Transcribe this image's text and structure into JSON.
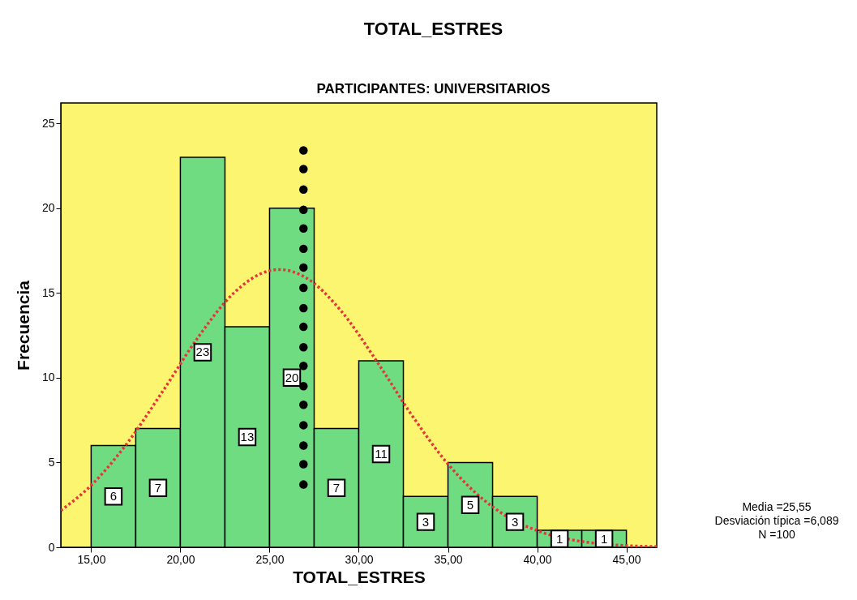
{
  "chart_data": {
    "type": "histogram",
    "title": "TOTAL_ESTRES",
    "subtitle": "PARTICIPANTES: UNIVERSITARIOS",
    "xlabel": "TOTAL_ESTRES",
    "ylabel": "Frecuencia",
    "bins": [
      15,
      17.5,
      20,
      22.5,
      25,
      27.5,
      30,
      32.5,
      35,
      37.5,
      40,
      42.5,
      45
    ],
    "values": [
      6,
      7,
      23,
      13,
      20,
      7,
      11,
      3,
      5,
      3,
      1,
      1
    ],
    "color": "#6fdc82",
    "value_labels": [
      "6",
      "7",
      "23",
      "13",
      "20",
      "7",
      "11",
      "3",
      "5",
      "3",
      "1",
      "1"
    ],
    "series": [
      {
        "type": "line",
        "color": "#e8323c",
        "line_style": "dotted",
        "x": [
          13.3,
          15,
          17,
          19,
          21,
          23,
          25,
          25.55,
          27,
          29,
          31,
          33,
          35,
          37,
          38,
          40.3,
          42,
          43,
          45,
          46.7
        ],
        "values": [
          2.17,
          3.65,
          6.11,
          9.18,
          12.39,
          15.0,
          16.31,
          16.38,
          15.92,
          13.95,
          10.98,
          7.75,
          4.91,
          2.8,
          2.02,
          0.87,
          0.43,
          0.27,
          0.1,
          0.04
        ]
      },
      {
        "type": "scatter",
        "color": "#000000",
        "marker": "circle",
        "x": [
          26.9,
          26.9,
          26.9,
          26.9,
          26.9,
          26.9,
          26.9,
          26.9,
          26.9,
          26.9,
          26.9,
          26.9,
          26.9,
          26.9,
          26.9,
          26.9,
          26.9,
          26.9
        ],
        "values": [
          23.4,
          22.3,
          21.1,
          19.9,
          18.8,
          17.6,
          16.5,
          15.3,
          14.1,
          13.0,
          11.8,
          10.7,
          9.5,
          8.4,
          7.2,
          6.0,
          4.9,
          3.7
        ]
      }
    ],
    "xlim": [
      13.3,
      46.7
    ],
    "ylim": [
      0,
      26.2
    ],
    "xticks": [
      {
        "value": 15,
        "label": "15,00"
      },
      {
        "value": 20,
        "label": "20,00"
      },
      {
        "value": 25,
        "label": "25,00"
      },
      {
        "value": 30,
        "label": "30,00"
      },
      {
        "value": 35,
        "label": "35,00"
      },
      {
        "value": 40,
        "label": "40,00"
      },
      {
        "value": 45,
        "label": "45,00"
      }
    ],
    "yticks": [
      0,
      5,
      10,
      15,
      20,
      25
    ],
    "annotations": [
      "Media =25,55",
      "Desviación típica =6,089",
      "N =100"
    ],
    "grid": false
  }
}
